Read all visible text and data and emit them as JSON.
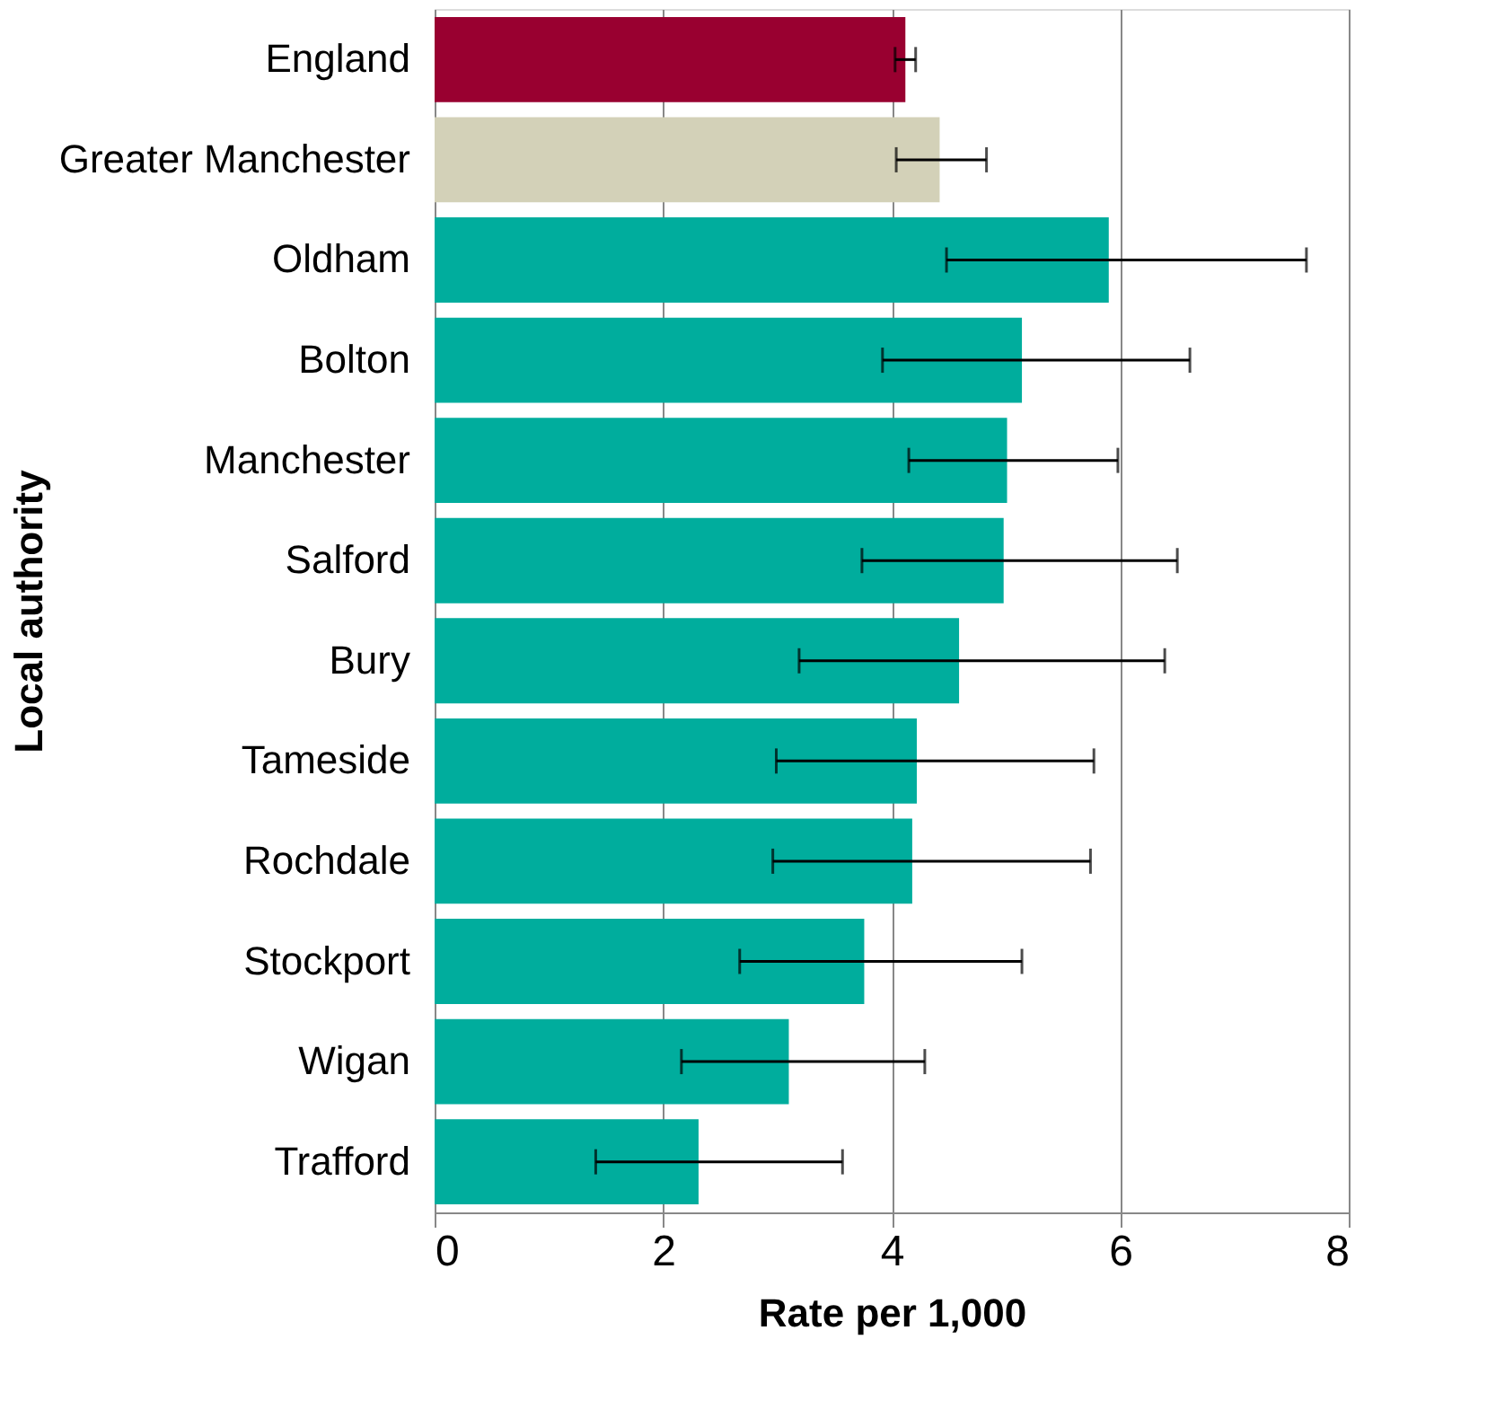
{
  "chart_data": {
    "type": "bar",
    "orientation": "horizontal",
    "xlabel": "Rate per 1,000",
    "ylabel": "Local authority",
    "categories": [
      "England",
      "Greater Manchester",
      "Oldham",
      "Bolton",
      "Manchester",
      "Salford",
      "Bury",
      "Tameside",
      "Rochdale",
      "Stockport",
      "Wigan",
      "Trafford"
    ],
    "values": [
      4.12,
      4.42,
      5.9,
      5.14,
      5.01,
      4.98,
      4.59,
      4.22,
      4.18,
      3.76,
      3.1,
      2.31
    ],
    "errors": [
      [
        4.03,
        4.21
      ],
      [
        4.04,
        4.83
      ],
      [
        4.48,
        7.63
      ],
      [
        3.92,
        6.61
      ],
      [
        4.15,
        5.98
      ],
      [
        3.74,
        6.5
      ],
      [
        3.19,
        6.39
      ],
      [
        2.99,
        5.77
      ],
      [
        2.96,
        5.74
      ],
      [
        2.67,
        5.14
      ],
      [
        2.16,
        4.29
      ],
      [
        1.41,
        3.57
      ]
    ],
    "colors": [
      "#990030",
      "#d3d1b8",
      "#00ad9d",
      "#00ad9d",
      "#00ad9d",
      "#00ad9d",
      "#00ad9d",
      "#00ad9d",
      "#00ad9d",
      "#00ad9d",
      "#00ad9d",
      "#00ad9d"
    ],
    "xlim": [
      0,
      8
    ],
    "xticks": [
      0,
      2,
      4,
      6,
      8
    ],
    "grid": "x"
  }
}
